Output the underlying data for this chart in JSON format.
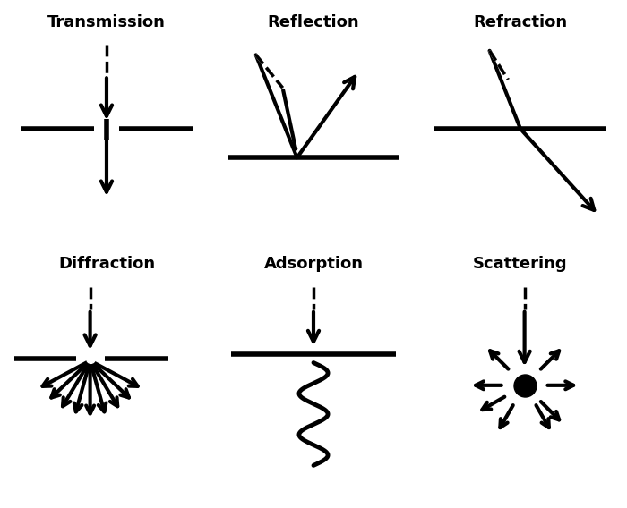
{
  "background_color": "#ffffff",
  "panels": [
    {
      "label": "Transmission",
      "col": 0,
      "row": 0
    },
    {
      "label": "Reflection",
      "col": 1,
      "row": 0
    },
    {
      "label": "Refraction",
      "col": 2,
      "row": 0
    },
    {
      "label": "Diffraction",
      "col": 0,
      "row": 1
    },
    {
      "label": "Adsorption",
      "col": 1,
      "row": 1
    },
    {
      "label": "Scattering",
      "col": 2,
      "row": 1
    }
  ],
  "lw_surface": 4.0,
  "lw_arrow": 3.0,
  "lw_dashed": 2.5,
  "ms_large": 18,
  "title_fontsize": 13
}
